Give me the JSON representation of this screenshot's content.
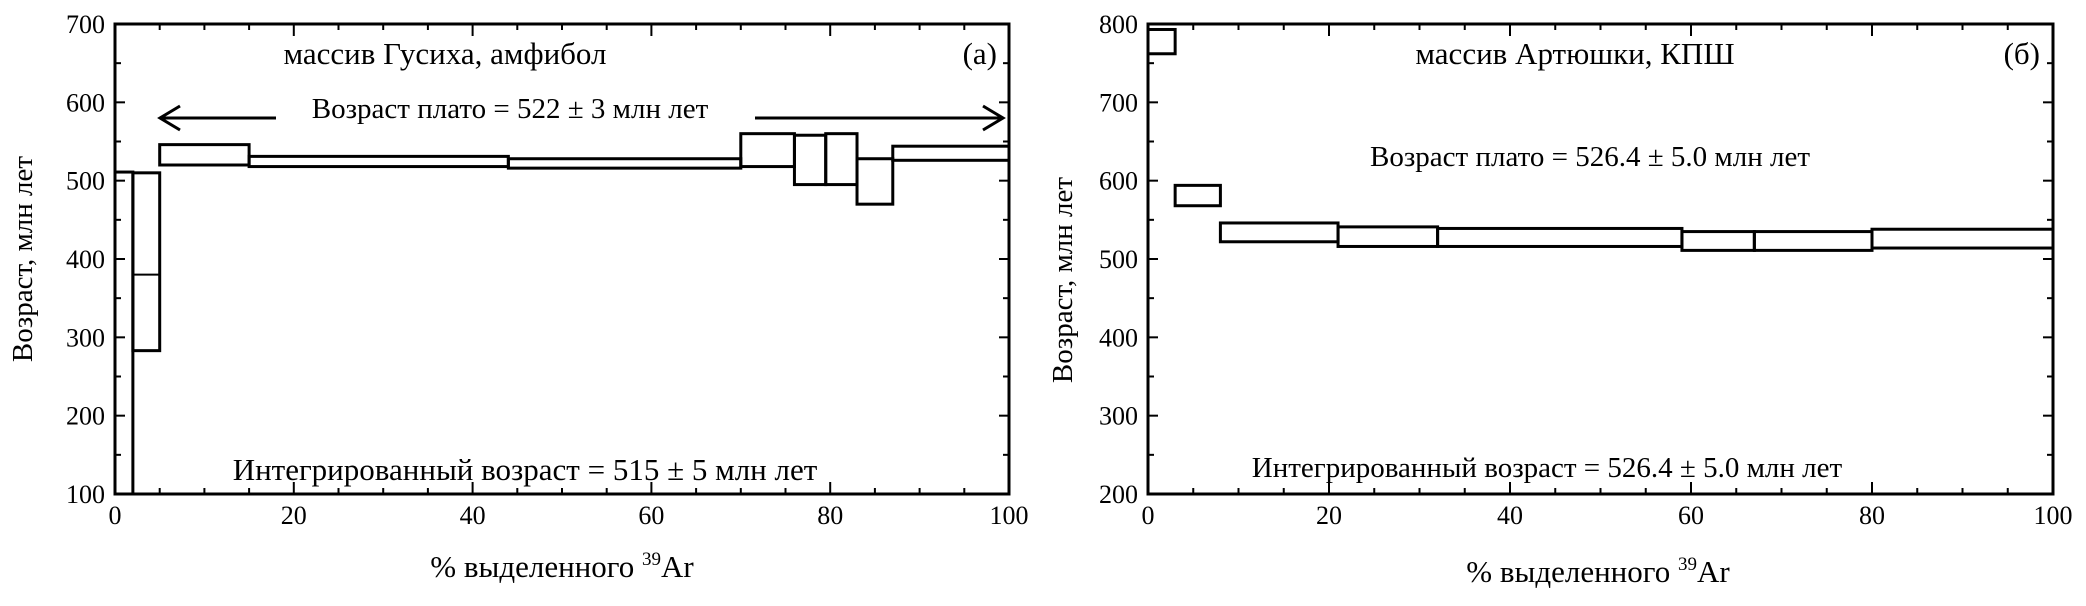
{
  "chart_data": [
    {
      "type": "step",
      "panel": "(a)",
      "title": "массив Гусиха, амфибол",
      "plateau_text": "Возраст плато = 522 ± 3 млн лет",
      "integrated_text": "Интегрированный возраст = 515 ± 5 млн лет",
      "xlabel_prefix": "% выделенного ",
      "xlabel_sup": "39",
      "xlabel_suffix": "Ar",
      "ylabel": "Возраст, млн лет",
      "xlim": [
        0,
        100
      ],
      "ylim": [
        100,
        700
      ],
      "xticks": [
        0,
        20,
        40,
        60,
        80,
        100
      ],
      "yticks": [
        100,
        200,
        300,
        400,
        500,
        600,
        700
      ],
      "plateau_range_percent": [
        5,
        100
      ],
      "steps": [
        {
          "x0": 0,
          "x1": 2,
          "low": 0,
          "high": 511
        },
        {
          "x0": 2,
          "x1": 5,
          "low": 283,
          "high": 510,
          "mid": 380
        },
        {
          "x0": 5,
          "x1": 15,
          "low": 520,
          "high": 546
        },
        {
          "x0": 15,
          "x1": 44,
          "low": 518,
          "high": 531
        },
        {
          "x0": 44,
          "x1": 70,
          "low": 516,
          "high": 528
        },
        {
          "x0": 70,
          "x1": 76,
          "low": 518,
          "high": 560
        },
        {
          "x0": 76,
          "x1": 79.5,
          "low": 495,
          "high": 558
        },
        {
          "x0": 79.5,
          "x1": 83,
          "low": 495,
          "high": 560
        },
        {
          "x0": 83,
          "x1": 87,
          "low": 470,
          "high": 528
        },
        {
          "x0": 87,
          "x1": 100,
          "low": 526,
          "high": 544
        }
      ]
    },
    {
      "type": "step",
      "panel": "(б)",
      "title": "массив Артюшки, КПШ",
      "plateau_text": "Возраст плато = 526.4 ± 5.0 млн лет",
      "integrated_text": "Интегрированный возраст = 526.4 ± 5.0 млн лет",
      "xlabel_prefix": "% выделенного ",
      "xlabel_sup": "39",
      "xlabel_suffix": "Ar",
      "ylabel": "Возраст, млн лет",
      "xlim": [
        0,
        100
      ],
      "ylim": [
        200,
        800
      ],
      "xticks": [
        0,
        20,
        40,
        60,
        80,
        100
      ],
      "yticks": [
        200,
        300,
        400,
        500,
        600,
        700,
        800
      ],
      "steps": [
        {
          "x0": 0,
          "x1": 3,
          "low": 762,
          "high": 793
        },
        {
          "x0": 3,
          "x1": 8,
          "low": 568,
          "high": 594
        },
        {
          "x0": 8,
          "x1": 21,
          "low": 522,
          "high": 546
        },
        {
          "x0": 21,
          "x1": 32,
          "low": 516,
          "high": 541
        },
        {
          "x0": 32,
          "x1": 59,
          "low": 516,
          "high": 539
        },
        {
          "x0": 59,
          "x1": 67,
          "low": 511,
          "high": 535
        },
        {
          "x0": 67,
          "x1": 80,
          "low": 511,
          "high": 535
        },
        {
          "x0": 80,
          "x1": 100,
          "low": 514,
          "high": 538
        }
      ]
    }
  ]
}
